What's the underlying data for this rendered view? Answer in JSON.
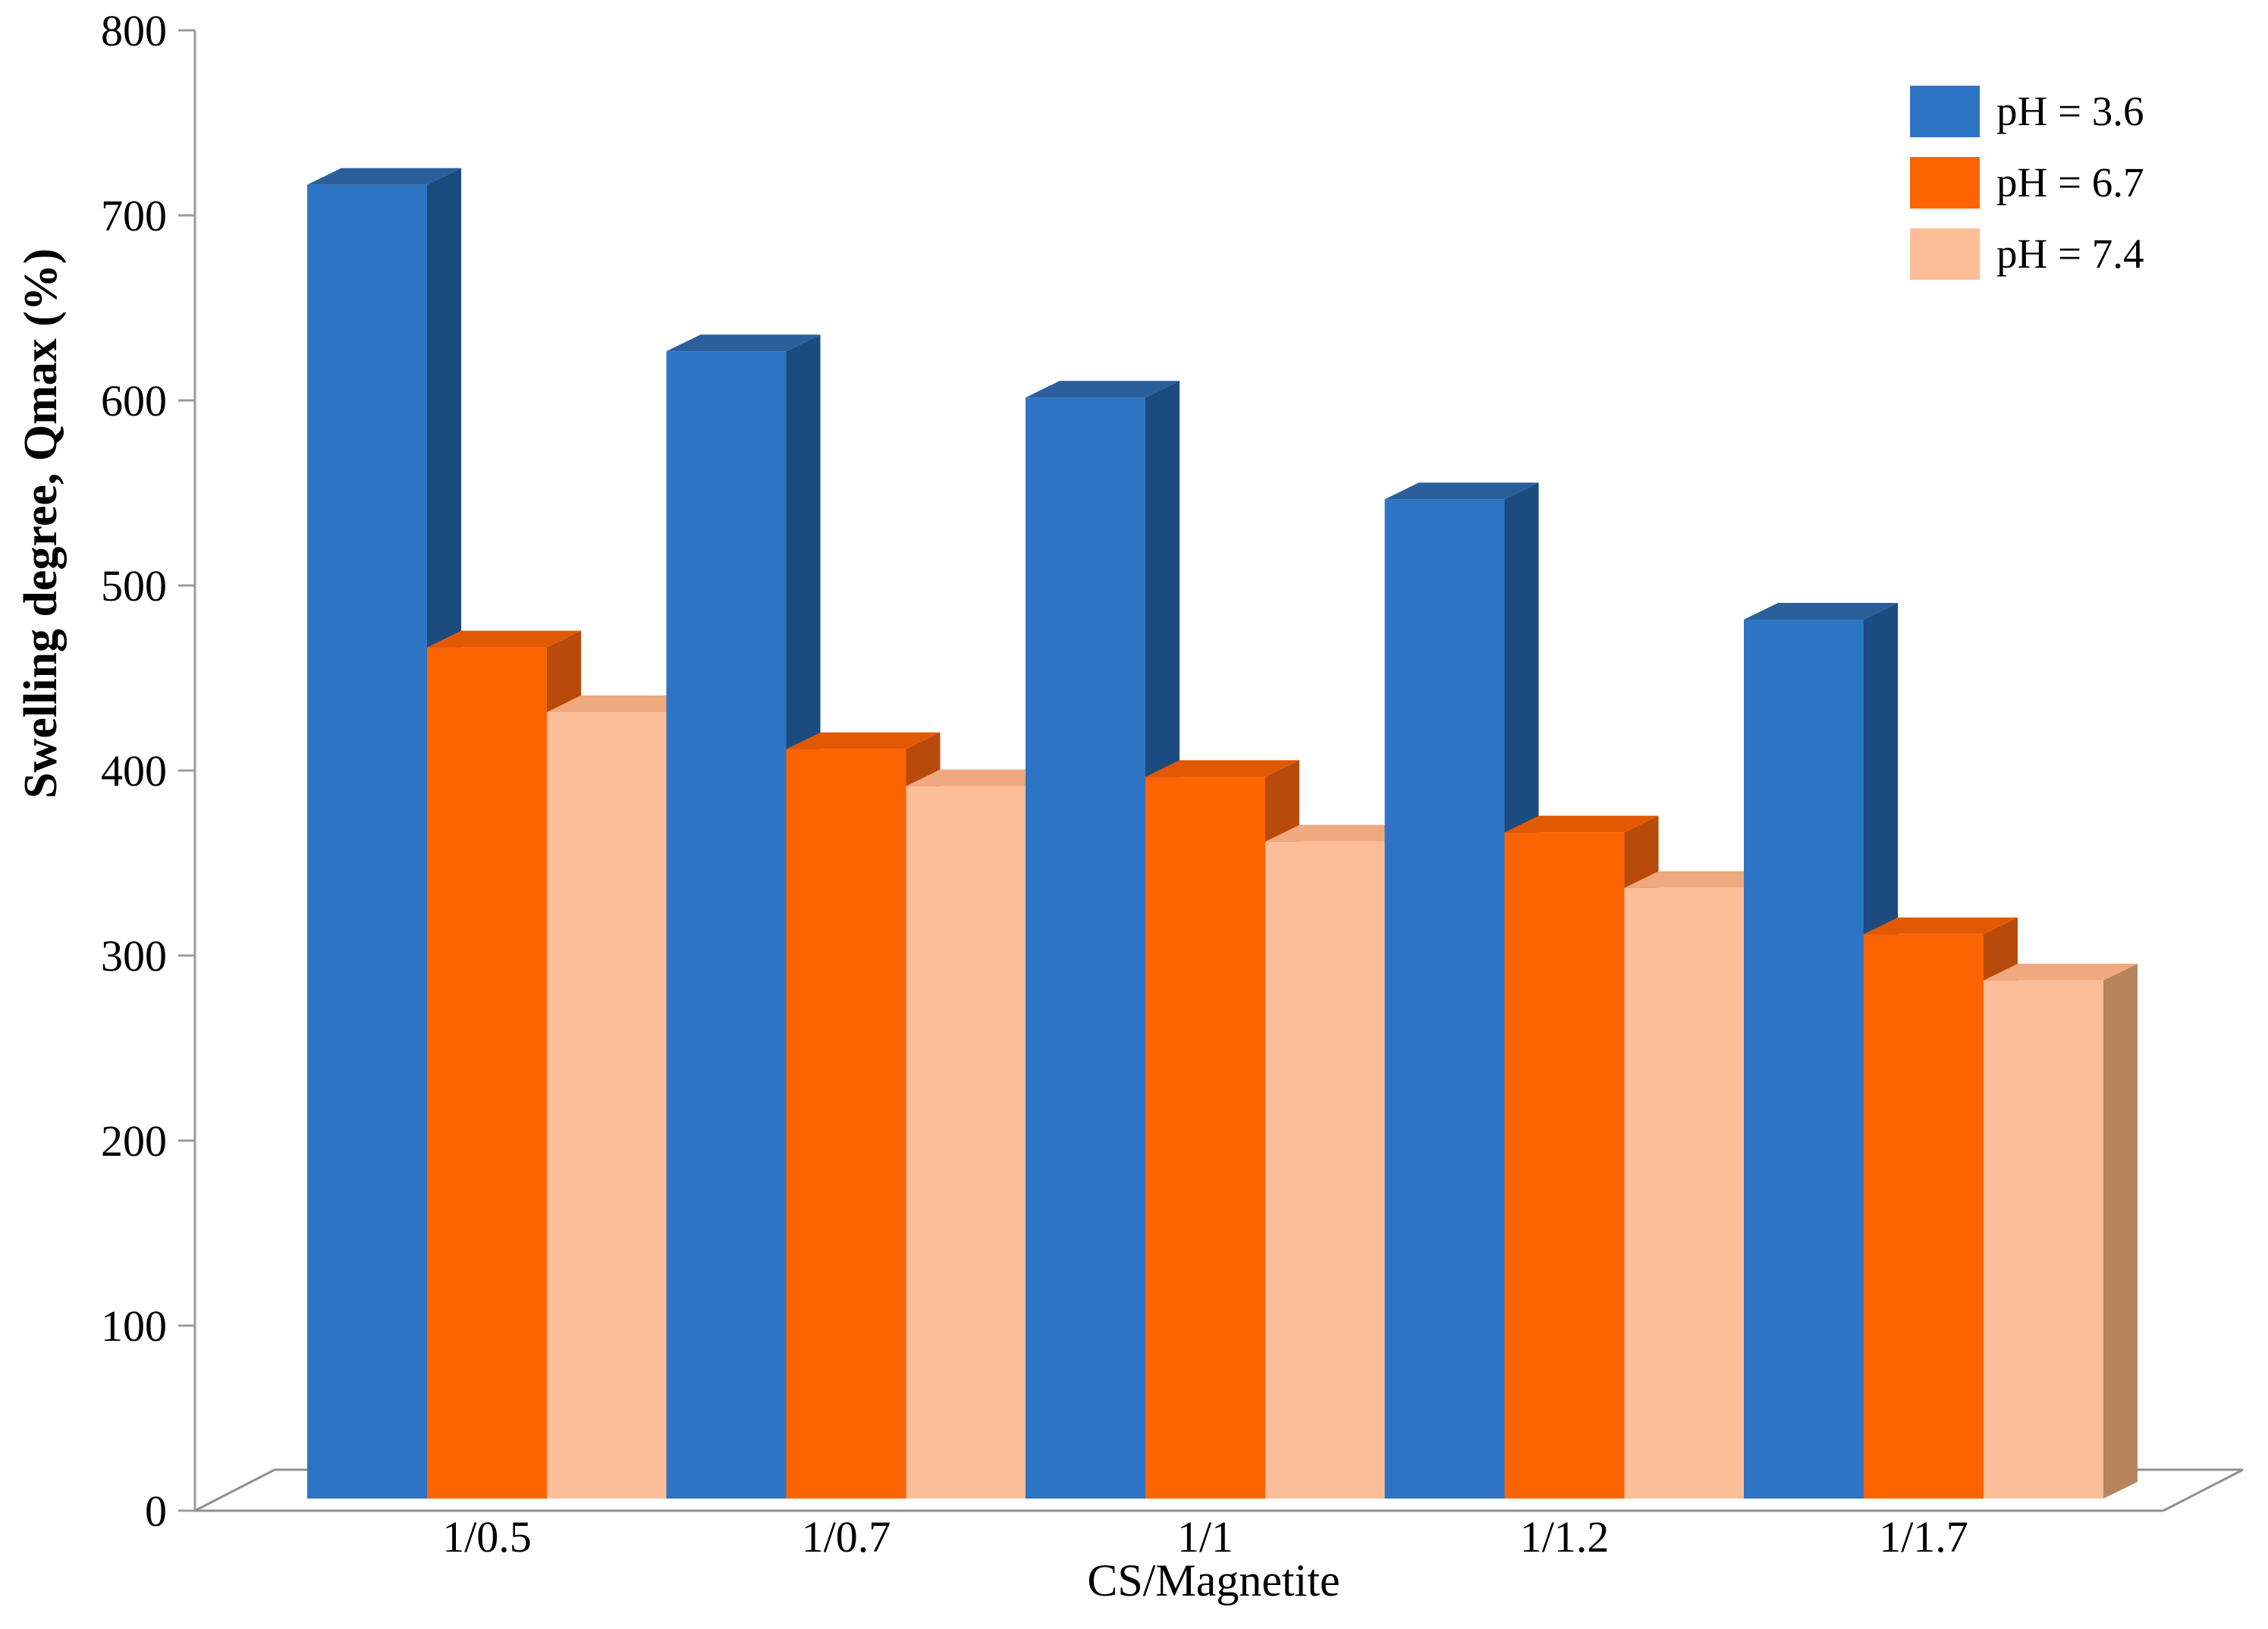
{
  "figure": {
    "background": "#ffffff"
  },
  "axes": {
    "y_title": "Swelling degree, Qmax (%)",
    "x_title": "CS/Magnetite",
    "y_ticks": [
      "0",
      "100",
      "200",
      "300",
      "400",
      "500",
      "600",
      "700",
      "800"
    ],
    "x_ticks": [
      "1/0.5",
      "1/0.7",
      "1/1",
      "1/1.2",
      "1/1.7"
    ],
    "axis_color": "#9B9B9B",
    "floor_color": "#8F8F8F"
  },
  "chart_data": {
    "type": "bar",
    "style": "3d-clustered",
    "title": "",
    "xlabel": "CS/Magnetite",
    "ylabel": "Swelling degree, Qmax (%)",
    "ylim": [
      0,
      800
    ],
    "ytick_step": 100,
    "grid": false,
    "legend_position": "top-right",
    "categories": [
      "1/0.5",
      "1/0.7",
      "1/1",
      "1/1.2",
      "1/1.7"
    ],
    "series": [
      {
        "name": "pH = 3.6",
        "values": [
          710,
          620,
          595,
          540,
          475
        ],
        "color": "#2E74C4",
        "color_top": "#2A5F9C",
        "color_side": "#1C4B7F"
      },
      {
        "name": "pH = 6.7",
        "values": [
          460,
          405,
          390,
          360,
          305
        ],
        "color": "#FB6400",
        "color_top": "#E25903",
        "color_side": "#B84B0B"
      },
      {
        "name": "pH = 7.4",
        "values": [
          425,
          385,
          355,
          330,
          280
        ],
        "color": "#FCBE99",
        "color_top": "#F0A87E",
        "color_side": "#B5855D"
      }
    ]
  }
}
